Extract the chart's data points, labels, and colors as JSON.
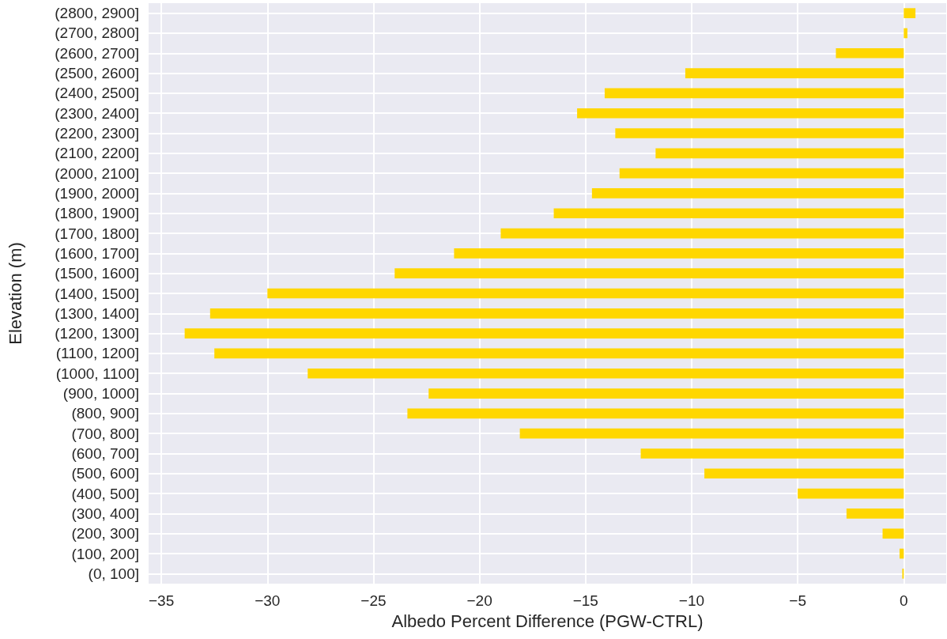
{
  "chart_data": {
    "type": "bar",
    "orientation": "horizontal",
    "xlabel": "Albedo Percent Difference (PGW-CTRL)",
    "ylabel": "Elevation (m)",
    "categories": [
      "(2800, 2900]",
      "(2700, 2800]",
      "(2600, 2700]",
      "(2500, 2600]",
      "(2400, 2500]",
      "(2300, 2400]",
      "(2200, 2300]",
      "(2100, 2200]",
      "(2000, 2100]",
      "(1900, 2000]",
      "(1800, 1900]",
      "(1700, 1800]",
      "(1600, 1700]",
      "(1500, 1600]",
      "(1400, 1500]",
      "(1300, 1400]",
      "(1200, 1300]",
      "(1100, 1200]",
      "(1000, 1100]",
      "(900, 1000]",
      "(800, 900]",
      "(700, 800]",
      "(600, 700]",
      "(500, 600]",
      "(400, 500]",
      "(300, 400]",
      "(200, 300]",
      "(100, 200]",
      "(0, 100]"
    ],
    "values": [
      0.55,
      0.17,
      -3.2,
      -10.3,
      -14.1,
      -15.4,
      -13.6,
      -11.7,
      -13.4,
      -14.7,
      -16.5,
      -19.0,
      -21.2,
      -24.0,
      -30.0,
      -32.7,
      -33.9,
      -32.5,
      -28.1,
      -22.4,
      -23.4,
      -18.1,
      -12.4,
      -9.4,
      -5.0,
      -2.7,
      -1.0,
      -0.2,
      -0.07
    ],
    "color": "#ffd700",
    "xlim": [
      -35.6,
      2.0
    ],
    "xticks": [
      {
        "value": -35,
        "label": "−35"
      },
      {
        "value": -30,
        "label": "−30"
      },
      {
        "value": -25,
        "label": "−25"
      },
      {
        "value": -20,
        "label": "−20"
      },
      {
        "value": -15,
        "label": "−15"
      },
      {
        "value": -10,
        "label": "−10"
      },
      {
        "value": -5,
        "label": "−5"
      },
      0
    ],
    "grid": true
  }
}
